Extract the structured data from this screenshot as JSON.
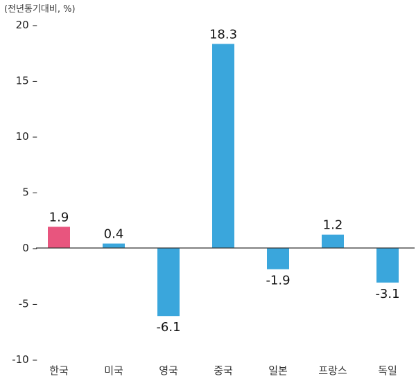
{
  "chart_data": {
    "type": "bar",
    "unit_label": "(전년동기대비, %)",
    "categories": [
      "한국",
      "미국",
      "영국",
      "중국",
      "일본",
      "프랑스",
      "독일"
    ],
    "values": [
      1.9,
      0.4,
      -6.1,
      18.3,
      -1.9,
      1.2,
      -3.1
    ],
    "value_labels": [
      "1.9",
      "0.4",
      "-6.1",
      "18.3",
      "-1.9",
      "1.2",
      "-3.1"
    ],
    "ylim": [
      -10,
      20
    ],
    "yticks": [
      20,
      15,
      10,
      5,
      0,
      -5,
      -10
    ],
    "ytick_labels": [
      "20 –",
      "15 –",
      "10 –",
      "5 –",
      "0 –",
      "-5 –",
      "-10 –"
    ],
    "grid": false,
    "colors": {
      "default_bar": "#3aa6dc",
      "highlight_bar": "#e8557e",
      "highlight_label": "#e8557e",
      "axis": "#333333"
    },
    "highlight_index": 0
  }
}
